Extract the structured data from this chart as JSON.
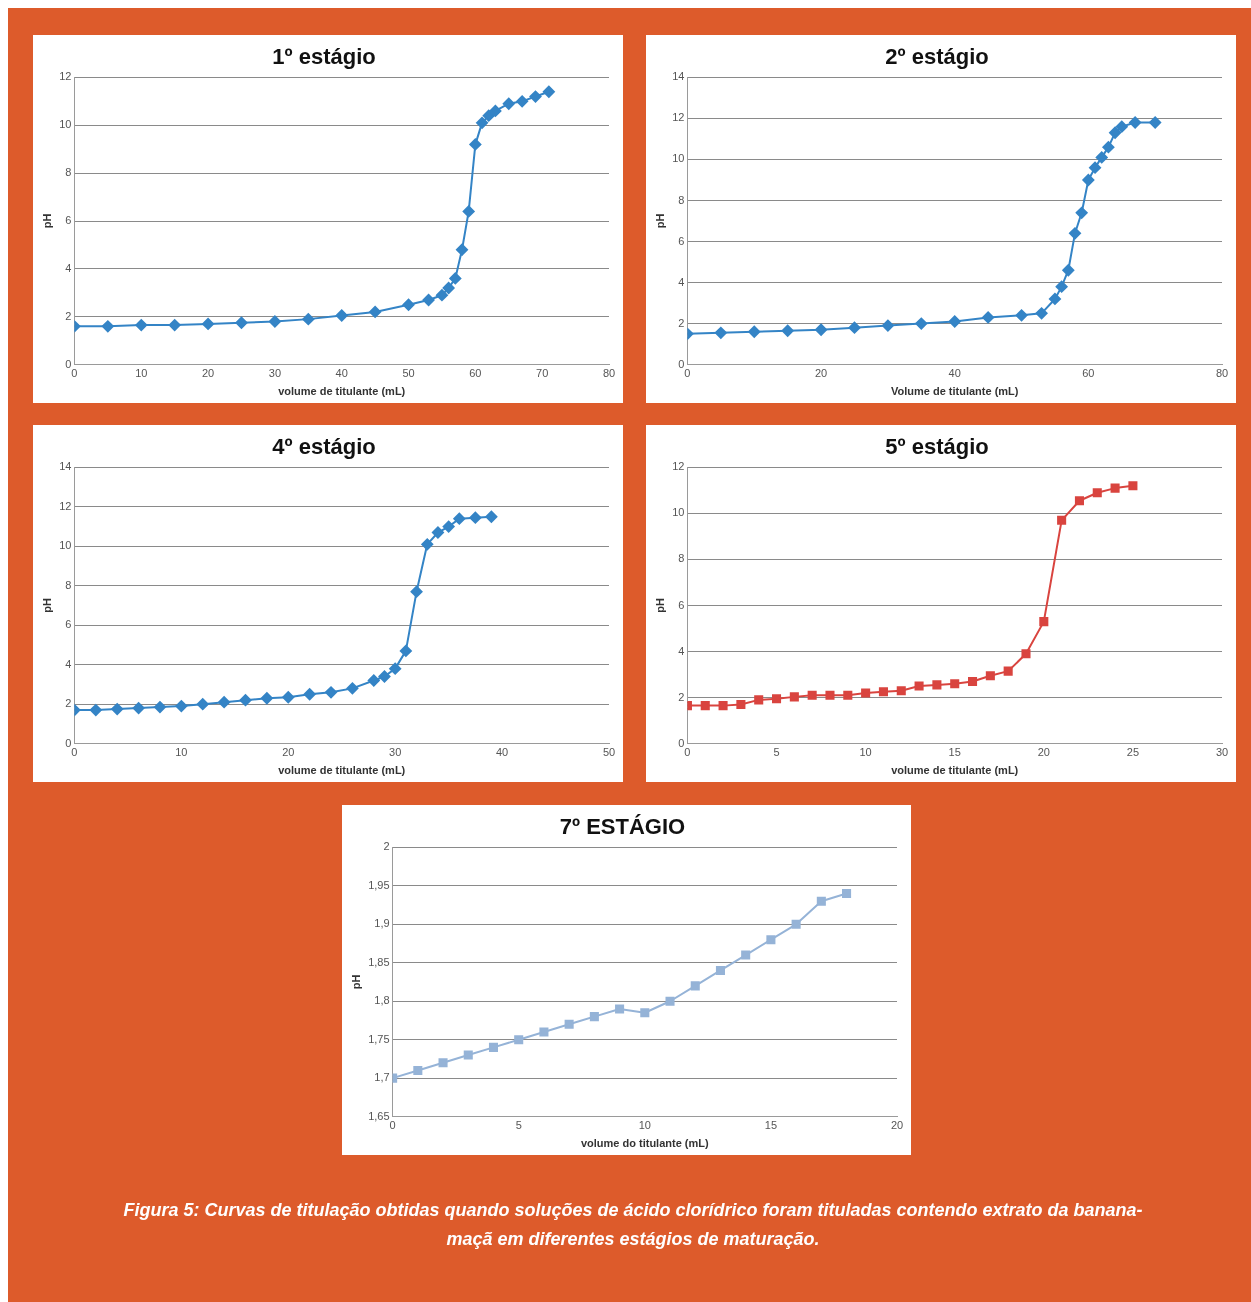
{
  "chart_data": [
    {
      "type": "line",
      "title": "1º estágio",
      "xlabel": "volume de titulante (mL)",
      "ylabel": "pH",
      "xlim": [
        0,
        80
      ],
      "xticks": [
        0,
        10,
        20,
        30,
        40,
        50,
        60,
        70,
        80
      ],
      "ylim": [
        0,
        12
      ],
      "yticks": [
        0,
        2,
        4,
        6,
        8,
        10,
        12
      ],
      "grid": "y",
      "marker": "diamond",
      "color": "#3484c6",
      "x": [
        0,
        5,
        10,
        15,
        20,
        25,
        30,
        35,
        40,
        45,
        50,
        53,
        55,
        56,
        57,
        58,
        59,
        60,
        61,
        62,
        63,
        65,
        67,
        69,
        71
      ],
      "values": [
        1.6,
        1.6,
        1.65,
        1.65,
        1.7,
        1.75,
        1.8,
        1.9,
        2.05,
        2.2,
        2.5,
        2.7,
        2.9,
        3.2,
        3.6,
        4.8,
        6.4,
        9.2,
        10.1,
        10.4,
        10.6,
        10.9,
        11.0,
        11.2,
        11.4
      ]
    },
    {
      "type": "line",
      "title": "2º estágio",
      "xlabel": "Volume de titulante (mL)",
      "ylabel": "pH",
      "xlim": [
        0,
        80
      ],
      "xticks": [
        0,
        20,
        40,
        60,
        80
      ],
      "ylim": [
        0,
        14
      ],
      "yticks": [
        0,
        2,
        4,
        6,
        8,
        10,
        12,
        14
      ],
      "grid": "y",
      "marker": "diamond",
      "color": "#3484c6",
      "x": [
        0,
        5,
        10,
        15,
        20,
        25,
        30,
        35,
        40,
        45,
        50,
        53,
        55,
        56,
        57,
        58,
        59,
        60,
        61,
        62,
        63,
        64,
        65,
        67,
        70
      ],
      "values": [
        1.5,
        1.55,
        1.6,
        1.65,
        1.7,
        1.8,
        1.9,
        2.0,
        2.1,
        2.3,
        2.4,
        2.5,
        3.2,
        3.8,
        4.6,
        6.4,
        7.4,
        9.0,
        9.6,
        10.1,
        10.6,
        11.3,
        11.6,
        11.8,
        11.8
      ]
    },
    {
      "type": "line",
      "title": "4º estágio",
      "xlabel": "volume de titulante (mL)",
      "ylabel": "pH",
      "xlim": [
        0,
        50
      ],
      "xticks": [
        0,
        10,
        20,
        30,
        40,
        50
      ],
      "ylim": [
        0,
        14
      ],
      "yticks": [
        0,
        2,
        4,
        6,
        8,
        10,
        12,
        14
      ],
      "grid": "y",
      "marker": "diamond",
      "color": "#3484c6",
      "x": [
        0,
        2,
        4,
        6,
        8,
        10,
        12,
        14,
        16,
        18,
        20,
        22,
        24,
        26,
        28,
        29,
        30,
        31,
        32,
        33,
        34,
        35,
        36,
        37.5,
        39
      ],
      "values": [
        1.7,
        1.7,
        1.75,
        1.8,
        1.85,
        1.9,
        2.0,
        2.1,
        2.2,
        2.3,
        2.35,
        2.5,
        2.6,
        2.8,
        3.2,
        3.4,
        3.8,
        4.7,
        7.7,
        10.1,
        10.7,
        11.0,
        11.4,
        11.45,
        11.5
      ]
    },
    {
      "type": "line",
      "title": "5º estágio",
      "xlabel": "volume de titulante (mL)",
      "ylabel": "pH",
      "xlim": [
        0,
        30
      ],
      "xticks": [
        0,
        5,
        10,
        15,
        20,
        25,
        30
      ],
      "ylim": [
        0,
        12
      ],
      "yticks": [
        0,
        2,
        4,
        6,
        8,
        10,
        12
      ],
      "grid": "y",
      "marker": "square",
      "color": "#d9443f",
      "x": [
        0,
        1,
        2,
        3,
        4,
        5,
        6,
        7,
        8,
        9,
        10,
        11,
        12,
        13,
        14,
        15,
        16,
        17,
        18,
        19,
        20,
        21,
        22,
        23,
        24,
        25
      ],
      "values": [
        1.65,
        1.65,
        1.65,
        1.7,
        1.9,
        1.95,
        2.03,
        2.1,
        2.1,
        2.1,
        2.2,
        2.25,
        2.3,
        2.5,
        2.55,
        2.6,
        2.7,
        2.95,
        3.15,
        3.9,
        5.3,
        9.7,
        10.55,
        10.9,
        11.1,
        11.2
      ]
    },
    {
      "type": "line",
      "title": "7º ESTÁGIO",
      "xlabel": "volume do titulante (mL)",
      "ylabel": "pH",
      "xlim": [
        0,
        20
      ],
      "xticks": [
        0,
        5,
        10,
        15,
        20
      ],
      "ylim": [
        1.65,
        2
      ],
      "yticks": [
        {
          "value": 1.65,
          "label": "1,65"
        },
        {
          "value": 1.7,
          "label": "1,7"
        },
        {
          "value": 1.75,
          "label": "1,75"
        },
        {
          "value": 1.8,
          "label": "1,8"
        },
        {
          "value": 1.85,
          "label": "1,85"
        },
        {
          "value": 1.9,
          "label": "1,9"
        },
        {
          "value": 1.95,
          "label": "1,95"
        },
        {
          "value": 2,
          "label": "2"
        }
      ],
      "grid": "y",
      "marker": "square",
      "color": "#95b3d7",
      "x": [
        0,
        1,
        2,
        3,
        4,
        5,
        6,
        7,
        8,
        9,
        10,
        11,
        12,
        13,
        14,
        15,
        16,
        17,
        18
      ],
      "values": [
        1.7,
        1.71,
        1.72,
        1.73,
        1.74,
        1.75,
        1.76,
        1.77,
        1.78,
        1.79,
        1.785,
        1.8,
        1.82,
        1.84,
        1.86,
        1.88,
        1.9,
        1.93,
        1.94
      ],
      "annotations": [
        "Figura 5: Curvas de titulação obtidas quando soluções de ácido clorídrico foram tituladas contendo extrato da banana-maçã em diferentes estágios de maturação."
      ]
    }
  ]
}
